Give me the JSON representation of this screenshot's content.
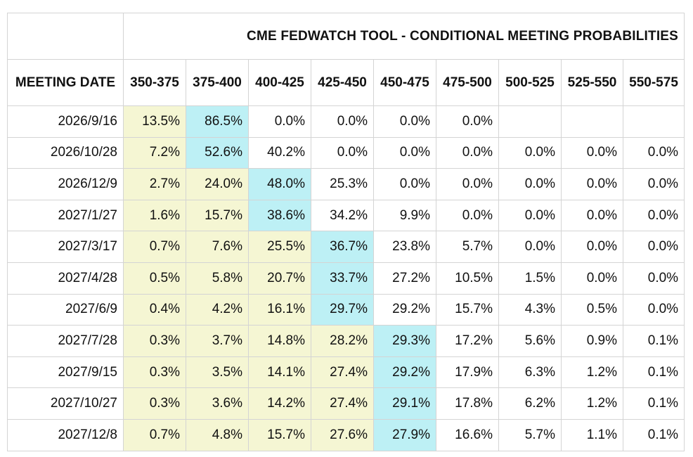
{
  "table": {
    "title": "CME FEDWATCH TOOL - CONDITIONAL MEETING PROBABILITIES",
    "meeting_header": "MEETING DATE",
    "columns": [
      "350-375",
      "375-400",
      "400-425",
      "425-450",
      "450-475",
      "475-500",
      "500-525",
      "525-550",
      "550-575"
    ],
    "rows": [
      {
        "date": "2026/9/16",
        "values": [
          "13.5%",
          "86.5%",
          "0.0%",
          "0.0%",
          "0.0%",
          "0.0%",
          "",
          "",
          ""
        ],
        "highlight": 1
      },
      {
        "date": "2026/10/28",
        "values": [
          "7.2%",
          "52.6%",
          "40.2%",
          "0.0%",
          "0.0%",
          "0.0%",
          "0.0%",
          "0.0%",
          "0.0%"
        ],
        "highlight": 1
      },
      {
        "date": "2026/12/9",
        "values": [
          "2.7%",
          "24.0%",
          "48.0%",
          "25.3%",
          "0.0%",
          "0.0%",
          "0.0%",
          "0.0%",
          "0.0%"
        ],
        "highlight": 2
      },
      {
        "date": "2027/1/27",
        "values": [
          "1.6%",
          "15.7%",
          "38.6%",
          "34.2%",
          "9.9%",
          "0.0%",
          "0.0%",
          "0.0%",
          "0.0%"
        ],
        "highlight": 2
      },
      {
        "date": "2027/3/17",
        "values": [
          "0.7%",
          "7.6%",
          "25.5%",
          "36.7%",
          "23.8%",
          "5.7%",
          "0.0%",
          "0.0%",
          "0.0%"
        ],
        "highlight": 3
      },
      {
        "date": "2027/4/28",
        "values": [
          "0.5%",
          "5.8%",
          "20.7%",
          "33.7%",
          "27.2%",
          "10.5%",
          "1.5%",
          "0.0%",
          "0.0%"
        ],
        "highlight": 3
      },
      {
        "date": "2027/6/9",
        "values": [
          "0.4%",
          "4.2%",
          "16.1%",
          "29.7%",
          "29.2%",
          "15.7%",
          "4.3%",
          "0.5%",
          "0.0%"
        ],
        "highlight": 3
      },
      {
        "date": "2027/7/28",
        "values": [
          "0.3%",
          "3.7%",
          "14.8%",
          "28.2%",
          "29.3%",
          "17.2%",
          "5.6%",
          "0.9%",
          "0.1%"
        ],
        "highlight": 4
      },
      {
        "date": "2027/9/15",
        "values": [
          "0.3%",
          "3.5%",
          "14.1%",
          "27.4%",
          "29.2%",
          "17.9%",
          "6.3%",
          "1.2%",
          "0.1%"
        ],
        "highlight": 4
      },
      {
        "date": "2027/10/27",
        "values": [
          "0.3%",
          "3.6%",
          "14.2%",
          "27.4%",
          "29.1%",
          "17.8%",
          "6.2%",
          "1.2%",
          "0.1%"
        ],
        "highlight": 4
      },
      {
        "date": "2027/12/8",
        "values": [
          "0.7%",
          "4.8%",
          "15.7%",
          "27.6%",
          "27.9%",
          "16.6%",
          "5.7%",
          "1.1%",
          "0.1%"
        ],
        "highlight": 4
      }
    ],
    "colors": {
      "below_highlight": "#f5f6d3",
      "highlight": "#bdf0f5",
      "border": "#d4d4d4"
    }
  }
}
